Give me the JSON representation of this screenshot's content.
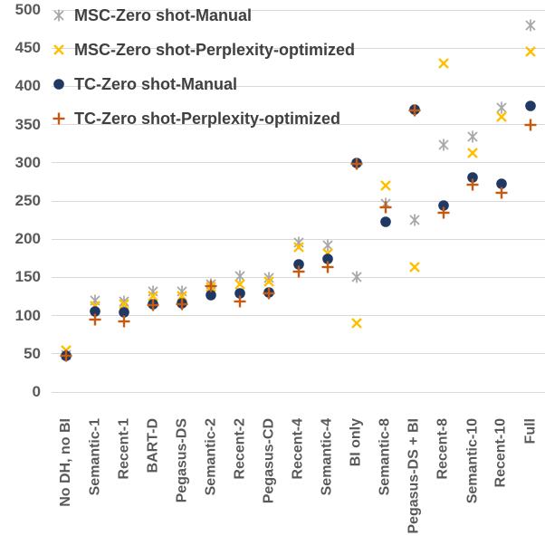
{
  "chart_data": {
    "type": "scatter",
    "title": "",
    "xlabel": "",
    "ylabel": "",
    "ylim": [
      0,
      500
    ],
    "yticks": [
      0,
      50,
      100,
      150,
      200,
      250,
      300,
      350,
      400,
      450,
      500
    ],
    "grid": true,
    "legend_position": "top-left",
    "categories": [
      "No DH, no BI",
      "Semantic-1",
      "Recent-1",
      "BART-D",
      "Pegasus-DS",
      "Semantic-2",
      "Recent-2",
      "Pegasus-CD",
      "Recent-4",
      "Semantic-4",
      "BI only",
      "Semantic-8",
      "Pegasus-DS + BI",
      "Recent-8",
      "Semantic-10",
      "Recent-10",
      "Full"
    ],
    "series": [
      {
        "name": "MSC-Zero shot-Manual",
        "marker": "star",
        "color": "#a6a6a6",
        "values": [
          48,
          120,
          118,
          131,
          131,
          141,
          152,
          149,
          196,
          192,
          150,
          247,
          225,
          323,
          334,
          372,
          480
        ]
      },
      {
        "name": "MSC-Zero shot-Perplexity-optimized",
        "marker": "x",
        "color": "#ffc000",
        "values": [
          55,
          113,
          115,
          126,
          126,
          137,
          141,
          145,
          190,
          181,
          90,
          270,
          163,
          430,
          313,
          360,
          445
        ]
      },
      {
        "name": "TC-Zero shot-Manual",
        "marker": "circle",
        "color": "#1f3864",
        "values": [
          47,
          105,
          104,
          115,
          116,
          127,
          129,
          130,
          167,
          174,
          300,
          223,
          370,
          244,
          281,
          272,
          374
        ]
      },
      {
        "name": "TC-Zero shot-Perplexity-optimized",
        "marker": "plus",
        "color": "#c55a11",
        "values": [
          47,
          95,
          92,
          114,
          115,
          139,
          118,
          129,
          157,
          163,
          299,
          242,
          369,
          235,
          271,
          261,
          350
        ]
      }
    ],
    "colors": {
      "gridline": "#d9d9d9",
      "axis_text": "#595959",
      "legend_text": "#404040",
      "background": "#ffffff"
    }
  }
}
